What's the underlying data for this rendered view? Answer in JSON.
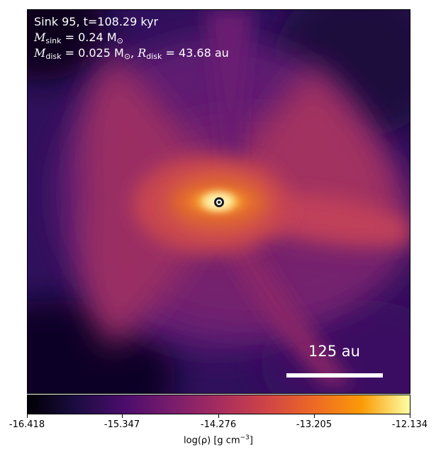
{
  "annotation": {
    "line1": "Sink 95, t=108.29 kyr",
    "m_sink_symbol": "M",
    "m_sink_sub": "sink",
    "m_sink_value": " = 0.24 M",
    "m_sun_sub": "⊙",
    "m_disk_symbol": "M",
    "m_disk_sub": "disk",
    "m_disk_value": " = 0.025 M",
    "m_disk_sun_sub": "⊙",
    "separator": ", ",
    "r_disk_symbol": "R",
    "r_disk_sub": "disk",
    "r_disk_value": " = 43.68 au"
  },
  "scale_bar": {
    "label": "125 au"
  },
  "colorbar": {
    "ticks": [
      "-16.418",
      "-15.347",
      "-14.276",
      "-13.205",
      "-12.134"
    ],
    "label_main": "log(ρ) [g cm",
    "label_exp": "−3",
    "label_close": "]",
    "colormap": "inferno",
    "vmin": -16.418,
    "vmax": -12.134
  },
  "colors": {
    "background_dark": "#0d0729",
    "envelope_purple": "#5a1675",
    "outflow_red": "#b2395a",
    "inner_orange": "#f08a1c",
    "disk_core": "#fff8c8"
  },
  "sink_marker": {
    "icon": "sink-circle-icon"
  }
}
